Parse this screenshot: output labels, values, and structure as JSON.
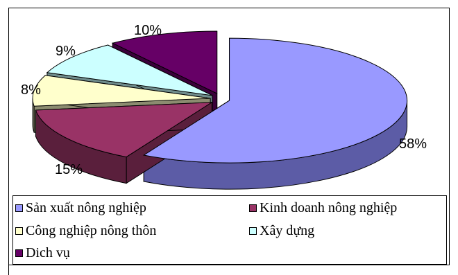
{
  "chart_data": {
    "type": "pie",
    "style": "3d-exploded",
    "slices": [
      {
        "label": "Sản xuất nông nghiệp",
        "value": 58,
        "value_label": "58%",
        "color": "#9999ff",
        "side_color": "#5c5ca6"
      },
      {
        "label": "Kinh doanh nông nghiệp",
        "value": 15,
        "value_label": "15%",
        "color": "#993366",
        "side_color": "#5a1f3c"
      },
      {
        "label": "Công nghiệp nông thôn",
        "value": 8,
        "value_label": "8%",
        "color": "#ffffcc",
        "side_color": "#8c8c70"
      },
      {
        "label": "Xây dựng",
        "value": 9,
        "value_label": "9%",
        "color": "#ccffff",
        "side_color": "#6f8c8c"
      },
      {
        "label": "Dich vụ",
        "value": 10,
        "value_label": "10%",
        "color": "#660066",
        "side_color": "#3a003a"
      }
    ],
    "legend_position": "bottom"
  }
}
